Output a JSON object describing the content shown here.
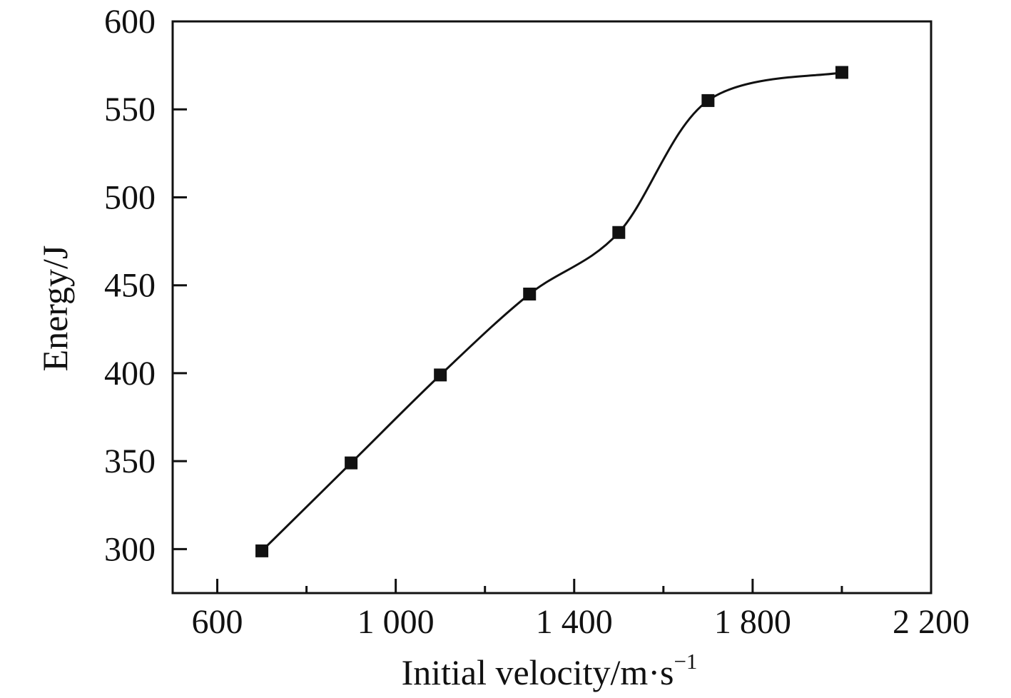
{
  "chart_data": {
    "type": "line",
    "title": "",
    "xlabel": "Initial velocity/m·s",
    "xlabel_superscript": "−1",
    "ylabel": "Energy/J",
    "xlim": [
      500,
      2200
    ],
    "ylim": [
      275,
      600
    ],
    "x_ticks": [
      600,
      1000,
      1400,
      1800,
      2200
    ],
    "x_tick_labels": [
      "600",
      "1 000",
      "1 400",
      "1 800",
      "2 200"
    ],
    "x_minor_ticks": [
      800,
      1200,
      1600,
      2000
    ],
    "y_ticks": [
      300,
      350,
      400,
      450,
      500,
      550,
      600
    ],
    "y_tick_labels": [
      "300",
      "350",
      "400",
      "450",
      "500",
      "550",
      "600"
    ],
    "grid": false,
    "legend": "none",
    "marker": "square",
    "line_style": "smooth",
    "series": [
      {
        "x": [
          700,
          900,
          1100,
          1300,
          1500,
          1700,
          2000
        ],
        "y": [
          299,
          349,
          399,
          445,
          480,
          555,
          571
        ]
      }
    ],
    "colors": {
      "line": "#111111",
      "marker": "#111111",
      "axis": "#111111"
    }
  }
}
